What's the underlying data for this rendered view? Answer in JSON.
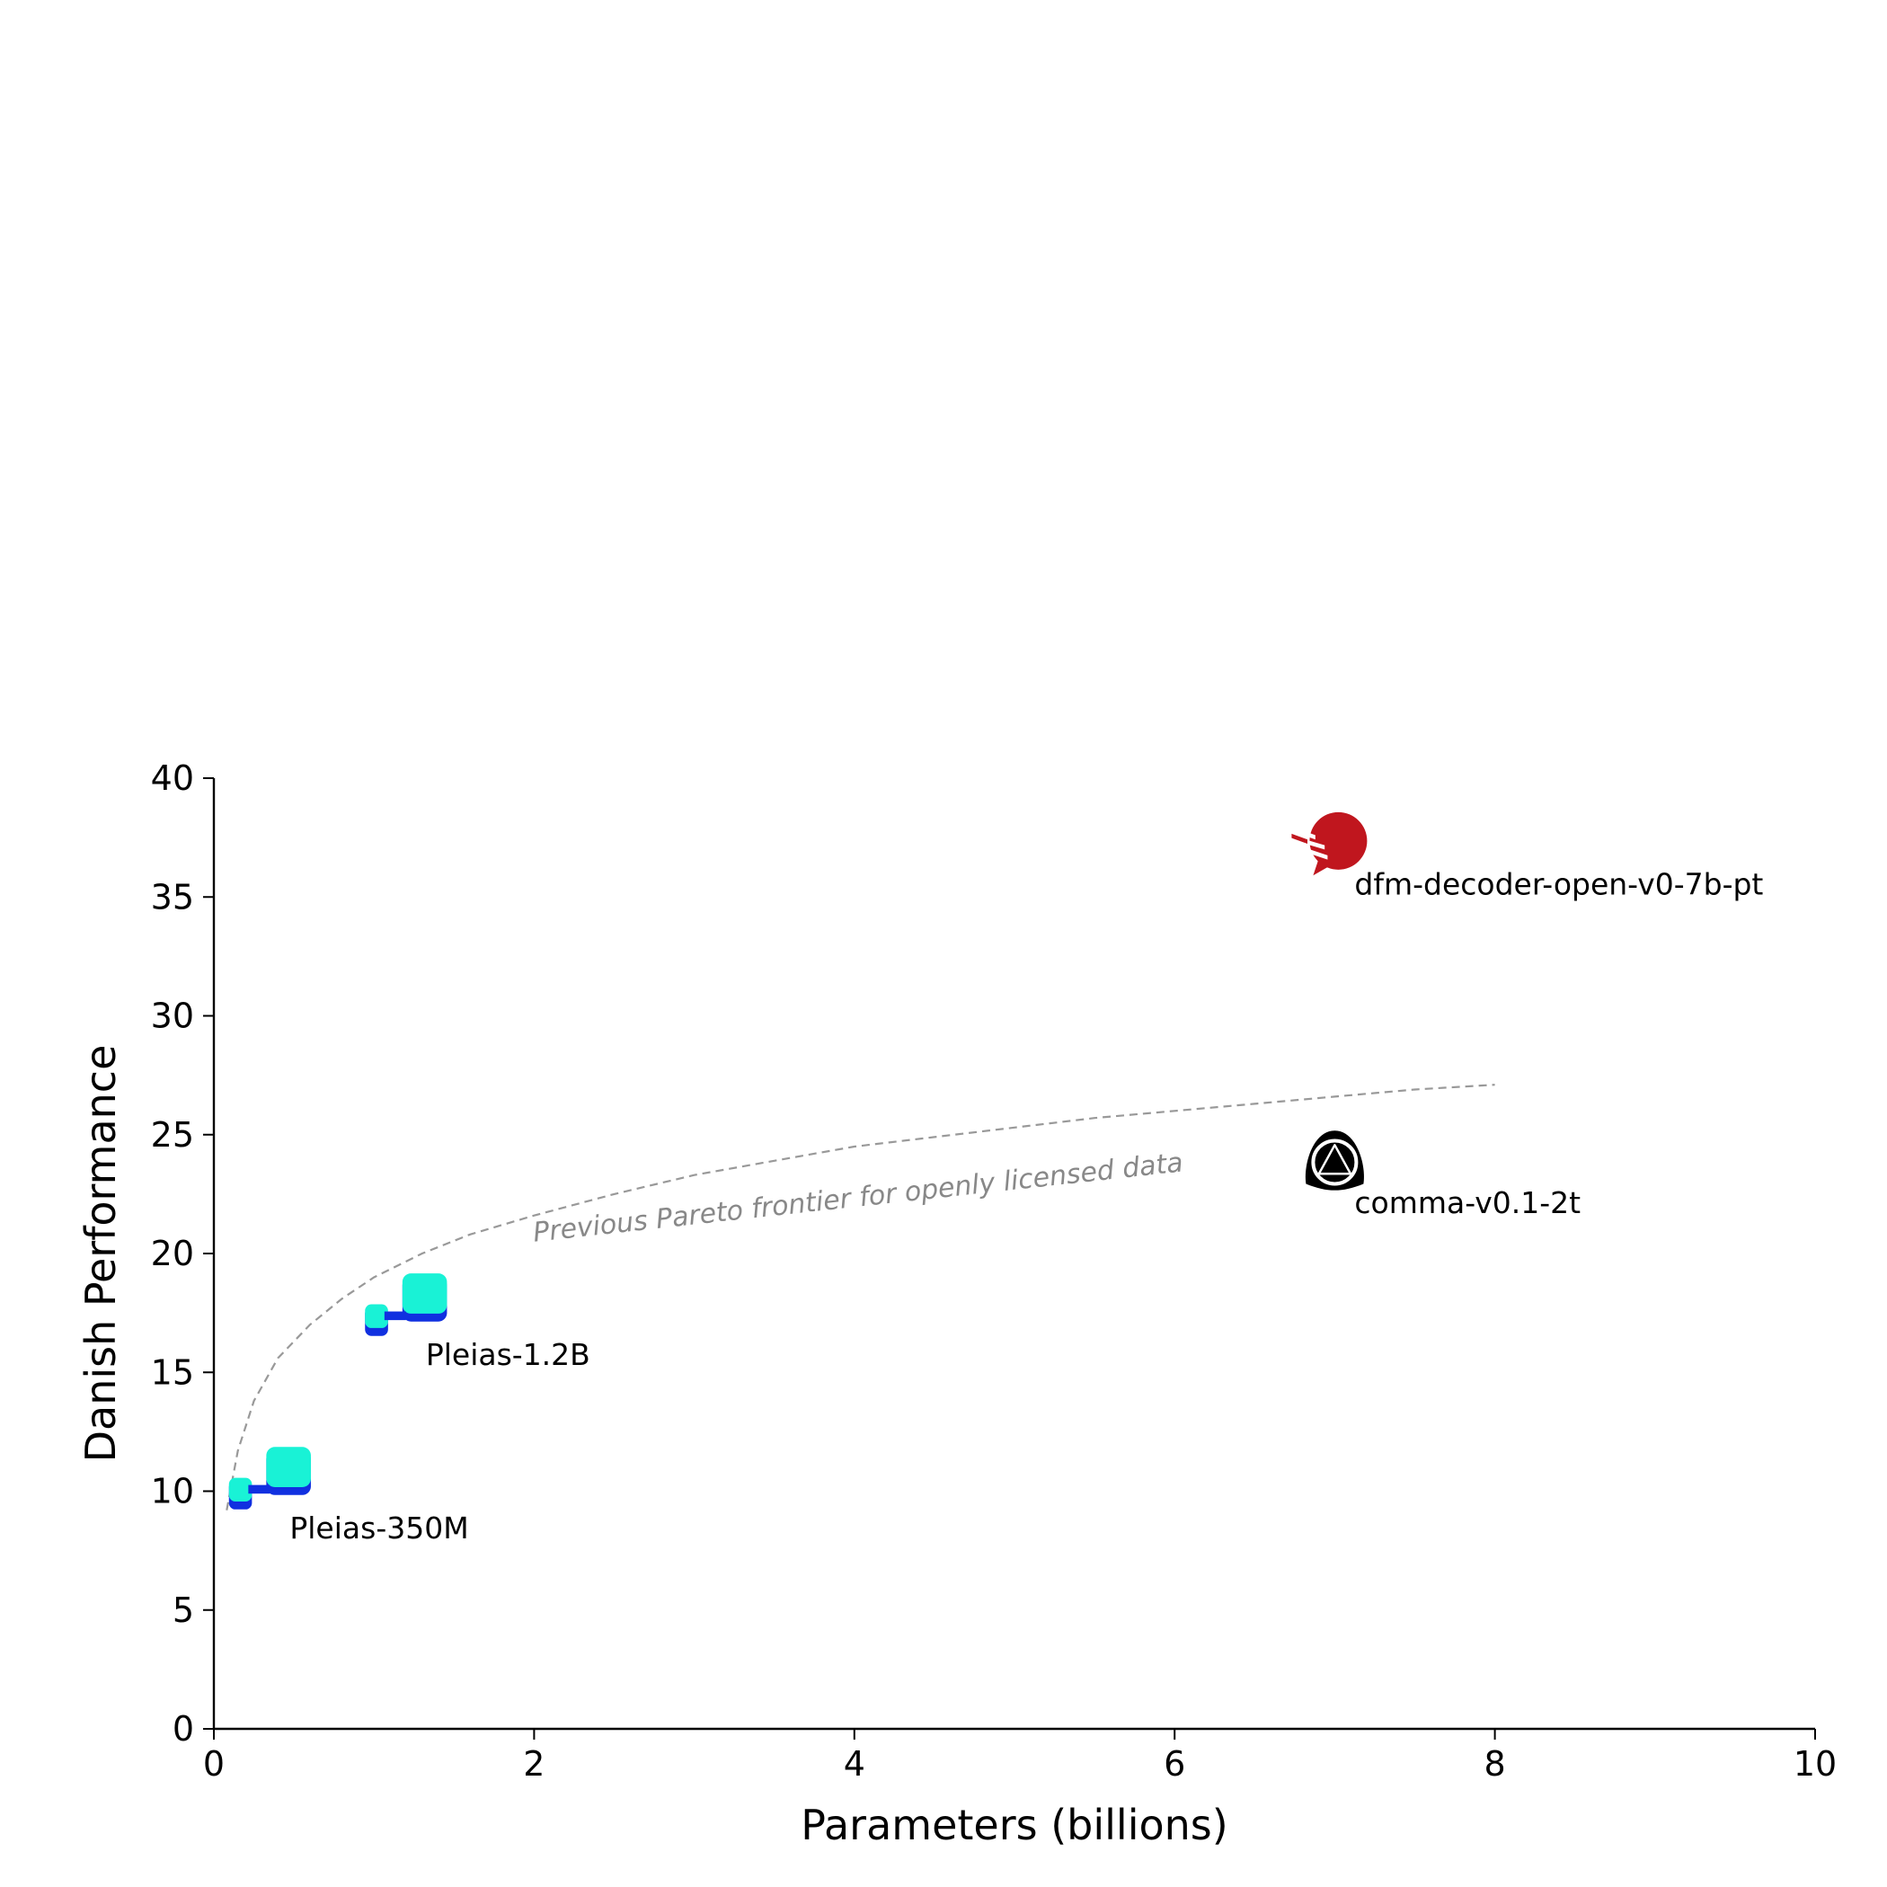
{
  "chart_data": {
    "type": "scatter",
    "xlabel": "Parameters (billions)",
    "ylabel": "Danish Performance",
    "xlim": [
      0,
      10
    ],
    "ylim": [
      0,
      40
    ],
    "xticks": [
      "0",
      "2",
      "4",
      "6",
      "8",
      "10"
    ],
    "yticks": [
      "0",
      "5",
      "10",
      "15",
      "20",
      "25",
      "30",
      "35",
      "40"
    ],
    "grid": false,
    "points": [
      {
        "label": "Pleias-350M",
        "x": 0.35,
        "y": 10.2,
        "icon": "pleias-logo-icon",
        "colors": [
          "#19f2d6",
          "#1030e0"
        ]
      },
      {
        "label": "Pleias-1.2B",
        "x": 1.2,
        "y": 17.5,
        "icon": "pleias-logo-icon",
        "colors": [
          "#19f2d6",
          "#1030e0"
        ]
      },
      {
        "label": "comma-v0.1-2t",
        "x": 7.0,
        "y": 23.9,
        "icon": "comma-logo-icon",
        "colors": [
          "#000000",
          "#ffffff"
        ]
      },
      {
        "label": "dfm-decoder-open-v0-7b-pt",
        "x": 7.0,
        "y": 37.3,
        "icon": "dfm-logo-icon",
        "colors": [
          "#c0161e",
          "#ffffff"
        ]
      }
    ],
    "frontier": {
      "label": "Previous Pareto frontier for openly licensed data",
      "style": "dashed",
      "color": "#999999",
      "x": [
        0.08,
        0.15,
        0.25,
        0.4,
        0.6,
        0.8,
        1.0,
        1.3,
        1.6,
        2.0,
        2.5,
        3.0,
        3.5,
        4.0,
        4.5,
        5.0,
        5.5,
        6.0,
        6.5,
        7.0,
        7.5,
        8.0
      ],
      "y": [
        9.2,
        11.7,
        13.8,
        15.6,
        17.0,
        18.1,
        19.0,
        20.0,
        20.8,
        21.6,
        22.5,
        23.3,
        23.9,
        24.5,
        24.9,
        25.3,
        25.7,
        26.0,
        26.3,
        26.6,
        26.9,
        27.1
      ]
    }
  }
}
